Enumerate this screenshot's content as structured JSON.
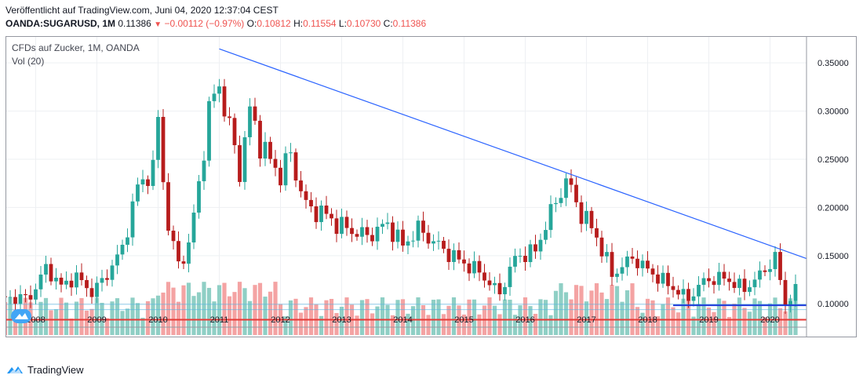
{
  "header": {
    "published": "Veröffentlicht auf TradingView.com, Juni 04, 2020 12:37:04 CEST",
    "symbol": "OANDA:SUGARUSD, 1M",
    "price": "0.11386",
    "change": "−0.00112 (−0.97%)",
    "o_label": "O:",
    "o_val": "0.10812",
    "h_label": "H:",
    "h_val": "0.11554",
    "l_label": "L:",
    "l_val": "0.10730",
    "c_label": "C:",
    "c_val": "0.11386"
  },
  "legend": {
    "title": "CFDs auf Zucker, 1M, OANDA",
    "volume": "Vol (20)"
  },
  "brand": {
    "name": "TradingView"
  },
  "colors": {
    "up": "#26a69a",
    "down": "#b71c1c",
    "vol_up": "#8fcfc5",
    "vol_down": "#f4a3a3",
    "trendline": "#2962ff",
    "support_red": "#e53935",
    "support_blue": "#1e3ad9",
    "axis_text": "#131722"
  },
  "chart_data": {
    "type": "candlestick",
    "timeframe": "1M",
    "x_tick_labels": [
      "2008",
      "2009",
      "2010",
      "2011",
      "2012",
      "2013",
      "2014",
      "2015",
      "2016",
      "2017",
      "2018",
      "2019",
      "2020"
    ],
    "y_tick_labels": [
      "0.10000",
      "0.15000",
      "0.20000",
      "0.25000",
      "0.30000",
      "0.35000"
    ],
    "ylim": [
      0.066,
      0.377
    ],
    "grid": true,
    "candles_start": "2007-06",
    "anchors": [
      {
        "d": "2007-06",
        "c": 0.105
      },
      {
        "d": "2007-12",
        "c": 0.107
      },
      {
        "d": "2008-03",
        "c": 0.138
      },
      {
        "d": "2008-06",
        "c": 0.118
      },
      {
        "d": "2008-09",
        "c": 0.128
      },
      {
        "d": "2008-12",
        "c": 0.112
      },
      {
        "d": "2009-03",
        "c": 0.13
      },
      {
        "d": "2009-06",
        "c": 0.158
      },
      {
        "d": "2009-09",
        "c": 0.222
      },
      {
        "d": "2009-12",
        "c": 0.24
      },
      {
        "d": "2010-01",
        "c": 0.29
      },
      {
        "d": "2010-03",
        "c": 0.18
      },
      {
        "d": "2010-05",
        "c": 0.14
      },
      {
        "d": "2010-07",
        "c": 0.16
      },
      {
        "d": "2010-09",
        "c": 0.225
      },
      {
        "d": "2010-11",
        "c": 0.3
      },
      {
        "d": "2011-01",
        "c": 0.33
      },
      {
        "d": "2011-03",
        "c": 0.28
      },
      {
        "d": "2011-05",
        "c": 0.24
      },
      {
        "d": "2011-07",
        "c": 0.3
      },
      {
        "d": "2011-10",
        "c": 0.255
      },
      {
        "d": "2012-01",
        "c": 0.235
      },
      {
        "d": "2012-03",
        "c": 0.255
      },
      {
        "d": "2012-06",
        "c": 0.2
      },
      {
        "d": "2012-09",
        "c": 0.195
      },
      {
        "d": "2013-01",
        "c": 0.18
      },
      {
        "d": "2013-06",
        "c": 0.17
      },
      {
        "d": "2013-10",
        "c": 0.183
      },
      {
        "d": "2014-01",
        "c": 0.16
      },
      {
        "d": "2014-04",
        "c": 0.178
      },
      {
        "d": "2014-08",
        "c": 0.16
      },
      {
        "d": "2014-12",
        "c": 0.145
      },
      {
        "d": "2015-04",
        "c": 0.133
      },
      {
        "d": "2015-08",
        "c": 0.11
      },
      {
        "d": "2015-11",
        "c": 0.148
      },
      {
        "d": "2016-03",
        "c": 0.155
      },
      {
        "d": "2016-06",
        "c": 0.195
      },
      {
        "d": "2016-09",
        "c": 0.228
      },
      {
        "d": "2016-12",
        "c": 0.195
      },
      {
        "d": "2017-03",
        "c": 0.17
      },
      {
        "d": "2017-06",
        "c": 0.13
      },
      {
        "d": "2017-10",
        "c": 0.148
      },
      {
        "d": "2018-01",
        "c": 0.135
      },
      {
        "d": "2018-05",
        "c": 0.12
      },
      {
        "d": "2018-09",
        "c": 0.105
      },
      {
        "d": "2018-12",
        "c": 0.124
      },
      {
        "d": "2019-04",
        "c": 0.127
      },
      {
        "d": "2019-08",
        "c": 0.115
      },
      {
        "d": "2019-12",
        "c": 0.135
      },
      {
        "d": "2020-02",
        "c": 0.148
      },
      {
        "d": "2020-04",
        "c": 0.1
      },
      {
        "d": "2020-06",
        "c": 0.114
      }
    ],
    "trendline": {
      "from": {
        "d": "2011-01",
        "price": 0.3645
      },
      "to": {
        "d": "2020-06",
        "price": 0.147
      }
    },
    "support_lines": [
      {
        "price": 0.0835,
        "color": "#e53935"
      },
      {
        "price": 0.0985,
        "color": "#1e3ad9",
        "start": "2018-06"
      }
    ],
    "volume_ma_lines": [
      0.0995,
      0.094
    ]
  }
}
